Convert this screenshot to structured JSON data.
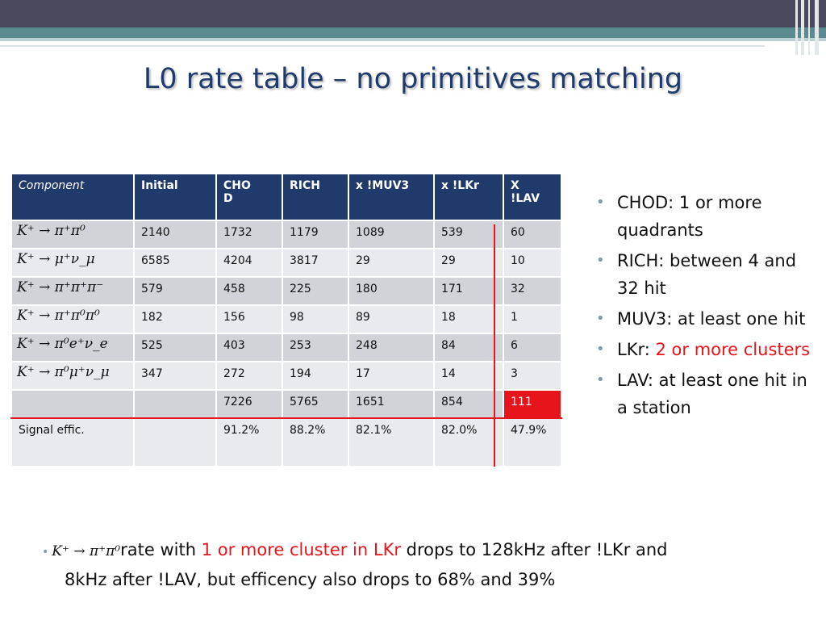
{
  "title": "L0 rate table – no primitives matching",
  "table": {
    "headers": [
      "Component",
      "Initial",
      "CHO\nD",
      "RICH",
      "x !MUV3",
      "x !LKr",
      "X\n!LAV"
    ],
    "rows": [
      {
        "process": "K⁺ → π⁺π⁰",
        "values": [
          "2140",
          "1732",
          "1179",
          "1089",
          "539",
          "60"
        ]
      },
      {
        "process": "K⁺ → μ⁺ν_μ",
        "values": [
          "6585",
          "4204",
          "3817",
          "29",
          "29",
          "10"
        ]
      },
      {
        "process": "K⁺ → π⁺π⁺π⁻",
        "values": [
          "579",
          "458",
          "225",
          "180",
          "171",
          "32"
        ]
      },
      {
        "process": "K⁺ → π⁺π⁰π⁰",
        "values": [
          "182",
          "156",
          "98",
          "89",
          "18",
          "1"
        ]
      },
      {
        "process": "K⁺ → π⁰e⁺ν_e",
        "values": [
          "525",
          "403",
          "253",
          "248",
          "84",
          "6"
        ]
      },
      {
        "process": "K⁺ → π⁰μ⁺ν_μ",
        "values": [
          "347",
          "272",
          "194",
          "17",
          "14",
          "3"
        ]
      }
    ],
    "sum_row": [
      "",
      "",
      "7226",
      "5765",
      "1651",
      "854",
      "111"
    ],
    "eff_row": [
      "Signal effic.",
      "",
      "91.2%",
      "88.2%",
      "82.1%",
      "82.0%",
      "47.9%"
    ]
  },
  "notes": {
    "n1": "CHOD: 1 or more quadrants",
    "n2": "RICH: between 4 and 32 hit",
    "n3": "MUV3: at least one hit",
    "n4_prefix": "LKr: ",
    "n4_red": "2 or more clusters",
    "n5": "LAV: at least one hit in a station"
  },
  "bottom": {
    "formula": "K⁺ → π⁺π⁰",
    "t1": "rate with ",
    "t2_red": "1 or more cluster in LKr",
    "t3": " drops to 128kHz after !LKr and",
    "t4": "8kHz after  !LAV, but efficency also drops to 68% and 39%"
  },
  "colors": {
    "header_bg": "#1f3a6b",
    "accent_red": "#e8141b",
    "title": "#1f3a6b"
  }
}
